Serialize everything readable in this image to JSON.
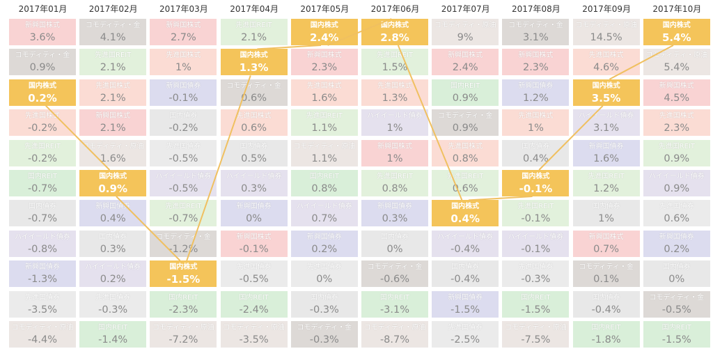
{
  "chart_data": {
    "type": "table",
    "highlight_asset": "国内株式",
    "highlight_color": "#f4c45a",
    "connector_color": "#f0c060",
    "months": [
      "2017年01月",
      "2017年02月",
      "2017年03月",
      "2017年04月",
      "2017年05月",
      "2017年06月",
      "2017年07月",
      "2017年08月",
      "2017年09月",
      "2017年10月"
    ],
    "asset_colors": {
      "新興国株式": "#f9d3d3",
      "先進国株式": "#fbdcd4",
      "国内株式": "#f4c45a",
      "国内REIT": "#d9efd9",
      "先進国REIT": "#e2f1dc",
      "国内債券": "#e8e8e8",
      "先進国債券": "#ebebeb",
      "新興国債券": "#dcdcef",
      "ハイイールド債券": "#e5e1ee",
      "コモディティ・金": "#ddd9d6",
      "コモディティ・原油": "#ece6e3"
    },
    "columns": [
      [
        {
          "name": "新興国株式",
          "value": "3.6%"
        },
        {
          "name": "コモディティ・金",
          "value": "0.9%"
        },
        {
          "name": "国内株式",
          "value": "0.2%"
        },
        {
          "name": "先進国株式",
          "value": "-0.2%"
        },
        {
          "name": "先進国REIT",
          "value": "-0.2%"
        },
        {
          "name": "国内REIT",
          "value": "-0.7%"
        },
        {
          "name": "国内債券",
          "value": "-0.7%"
        },
        {
          "name": "ハイイールド債券",
          "value": "-0.8%"
        },
        {
          "name": "新興国債券",
          "value": "-1.3%"
        },
        {
          "name": "先進国債券",
          "value": "-3.5%"
        },
        {
          "name": "コモディティ・原油",
          "value": "-4.4%"
        }
      ],
      [
        {
          "name": "コモディティ・金",
          "value": "4.1%"
        },
        {
          "name": "先進国REIT",
          "value": "2.1%"
        },
        {
          "name": "先進国株式",
          "value": "2.1%"
        },
        {
          "name": "新興国株式",
          "value": "2.1%"
        },
        {
          "name": "コモディティ・原油",
          "value": "1.6%"
        },
        {
          "name": "国内株式",
          "value": "0.9%"
        },
        {
          "name": "新興国債券",
          "value": "0.4%"
        },
        {
          "name": "国内債券",
          "value": "0.3%"
        },
        {
          "name": "ハイイールド債券",
          "value": "0.2%"
        },
        {
          "name": "先進国債券",
          "value": "-0.3%"
        },
        {
          "name": "国内REIT",
          "value": "-1.4%"
        }
      ],
      [
        {
          "name": "新興国株式",
          "value": "2.7%"
        },
        {
          "name": "先進国株式",
          "value": "1%"
        },
        {
          "name": "新興国債券",
          "value": "-0.1%"
        },
        {
          "name": "国内債券",
          "value": "-0.2%"
        },
        {
          "name": "先進国債券",
          "value": "-0.5%"
        },
        {
          "name": "ハイイールド債券",
          "value": "-0.5%"
        },
        {
          "name": "先進国REIT",
          "value": "-0.7%"
        },
        {
          "name": "コモディティ・金",
          "value": "-1.2%"
        },
        {
          "name": "国内株式",
          "value": "-1.5%"
        },
        {
          "name": "国内REIT",
          "value": "-2.3%"
        },
        {
          "name": "コモディティ・原油",
          "value": "-7.2%"
        }
      ],
      [
        {
          "name": "先進国REIT",
          "value": "2.1%"
        },
        {
          "name": "国内株式",
          "value": "1.3%"
        },
        {
          "name": "コモディティ・金",
          "value": "0.6%"
        },
        {
          "name": "先進国株式",
          "value": "0.6%"
        },
        {
          "name": "国内債券",
          "value": "0.5%"
        },
        {
          "name": "ハイイールド債券",
          "value": "0.3%"
        },
        {
          "name": "新興国債券",
          "value": "0%"
        },
        {
          "name": "新興国株式",
          "value": "-0.1%"
        },
        {
          "name": "先進国債券",
          "value": "-0.5%"
        },
        {
          "name": "国内REIT",
          "value": "-2.4%"
        },
        {
          "name": "コモディティ・原油",
          "value": "-3.5%"
        }
      ],
      [
        {
          "name": "国内株式",
          "value": "2.4%"
        },
        {
          "name": "新興国株式",
          "value": "2.3%"
        },
        {
          "name": "先進国株式",
          "value": "1.6%"
        },
        {
          "name": "先進国REIT",
          "value": "1.1%"
        },
        {
          "name": "コモディティ・原油",
          "value": "1.1%"
        },
        {
          "name": "国内REIT",
          "value": "0.8%"
        },
        {
          "name": "ハイイールド債券",
          "value": "0.7%"
        },
        {
          "name": "新興国債券",
          "value": "0.2%"
        },
        {
          "name": "先進国債券",
          "value": "0%"
        },
        {
          "name": "国内債券",
          "value": "-0.3%"
        },
        {
          "name": "コモディティ・金",
          "value": "-0.3%"
        }
      ],
      [
        {
          "name": "国内株式",
          "value": "2.8%"
        },
        {
          "name": "先進国REIT",
          "value": "1.5%"
        },
        {
          "name": "先進国株式",
          "value": "1.3%"
        },
        {
          "name": "ハイイールド債券",
          "value": "1%"
        },
        {
          "name": "新興国株式",
          "value": "1%"
        },
        {
          "name": "先進国REIT",
          "value": "0.8%"
        },
        {
          "name": "新興国債券",
          "value": "0.3%"
        },
        {
          "name": "国内債券",
          "value": "0%"
        },
        {
          "name": "コモディティ・金",
          "value": "-0.6%"
        },
        {
          "name": "国内REIT",
          "value": "-3.1%"
        },
        {
          "name": "コモディティ・原油",
          "value": "-8.7%"
        }
      ],
      [
        {
          "name": "コモディティ・原油",
          "value": "9%"
        },
        {
          "name": "新興国株式",
          "value": "2.4%"
        },
        {
          "name": "国内REIT",
          "value": "0.9%"
        },
        {
          "name": "コモディティ・金",
          "value": "0.9%"
        },
        {
          "name": "先進国株式",
          "value": "0.8%"
        },
        {
          "name": "先進国REIT",
          "value": "0.6%"
        },
        {
          "name": "国内株式",
          "value": "0.4%"
        },
        {
          "name": "ハイイールド債券",
          "value": "-0.4%"
        },
        {
          "name": "国内債券",
          "value": "-0.4%"
        },
        {
          "name": "新興国債券",
          "value": "-1.5%"
        },
        {
          "name": "先進国債券",
          "value": "-2.5%"
        }
      ],
      [
        {
          "name": "コモディティ・金",
          "value": "3.1%"
        },
        {
          "name": "新興国株式",
          "value": "2.3%"
        },
        {
          "name": "新興国債券",
          "value": "1.2%"
        },
        {
          "name": "先進国株式",
          "value": "1%"
        },
        {
          "name": "国内債券",
          "value": "0.4%"
        },
        {
          "name": "国内株式",
          "value": "-0.1%"
        },
        {
          "name": "先進国REIT",
          "value": "-0.1%"
        },
        {
          "name": "ハイイールド債券",
          "value": "-0.1%"
        },
        {
          "name": "先進国債券",
          "value": "-0.3%"
        },
        {
          "name": "国内REIT",
          "value": "-1.5%"
        },
        {
          "name": "コモディティ・原油",
          "value": "-7.5%"
        }
      ],
      [
        {
          "name": "コモディティ・原油",
          "value": "14.5%"
        },
        {
          "name": "先進国株式",
          "value": "4.6%"
        },
        {
          "name": "国内株式",
          "value": "3.5%"
        },
        {
          "name": "ハイイールド債券",
          "value": "3.1%"
        },
        {
          "name": "新興国債券",
          "value": "1.6%"
        },
        {
          "name": "先進国REIT",
          "value": "1.2%"
        },
        {
          "name": "国内債券",
          "value": "1%"
        },
        {
          "name": "新興国株式",
          "value": "0.7%"
        },
        {
          "name": "コモディティ・金",
          "value": "0.1%"
        },
        {
          "name": "国内債券",
          "value": "-0.4%"
        },
        {
          "name": "国内REIT",
          "value": "-1.8%"
        }
      ],
      [
        {
          "name": "国内株式",
          "value": "5.4%"
        },
        {
          "name": "コモディティ・原油",
          "value": "5.4%"
        },
        {
          "name": "新興国株式",
          "value": "4.5%"
        },
        {
          "name": "先進国株式",
          "value": "2.3%"
        },
        {
          "name": "先進国REIT",
          "value": "0.9%"
        },
        {
          "name": "ハイイールド債券",
          "value": "0.9%"
        },
        {
          "name": "先進国債券",
          "value": "0.6%"
        },
        {
          "name": "新興国債券",
          "value": "0.2%"
        },
        {
          "name": "国内債券",
          "value": "0%"
        },
        {
          "name": "コモディティ・金",
          "value": "-0.5%"
        },
        {
          "name": "国内REIT",
          "value": "-1.5%"
        }
      ]
    ]
  }
}
